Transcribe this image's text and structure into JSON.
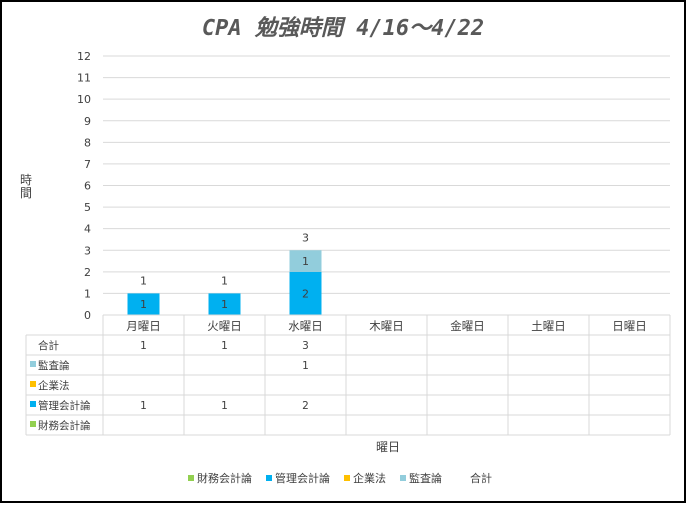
{
  "chart_data": {
    "type": "bar",
    "stacked": true,
    "title": "CPA 勉強時間 4/16～4/22",
    "xlabel": "曜日",
    "ylabel": "時間",
    "ylim": [
      0,
      12
    ],
    "yticks": [
      0,
      1,
      2,
      3,
      4,
      5,
      6,
      7,
      8,
      9,
      10,
      11,
      12
    ],
    "grid": true,
    "legend_position": "bottom",
    "data_table": true,
    "categories": [
      "月曜日",
      "火曜日",
      "水曜日",
      "木曜日",
      "金曜日",
      "土曜日",
      "日曜日"
    ],
    "series": [
      {
        "name": "財務会計論",
        "color": "#92d050",
        "values": [
          null,
          null,
          null,
          null,
          null,
          null,
          null
        ]
      },
      {
        "name": "管理会計論",
        "color": "#00b0f0",
        "values": [
          1,
          1,
          2,
          null,
          null,
          null,
          null
        ]
      },
      {
        "name": "企業法",
        "color": "#ffc000",
        "values": [
          null,
          null,
          null,
          null,
          null,
          null,
          null
        ]
      },
      {
        "name": "監査論",
        "color": "#92cddc",
        "values": [
          null,
          null,
          1,
          null,
          null,
          null,
          null
        ]
      }
    ],
    "totals": {
      "name": "合計",
      "values": [
        1,
        1,
        3,
        null,
        null,
        null,
        null
      ]
    }
  }
}
